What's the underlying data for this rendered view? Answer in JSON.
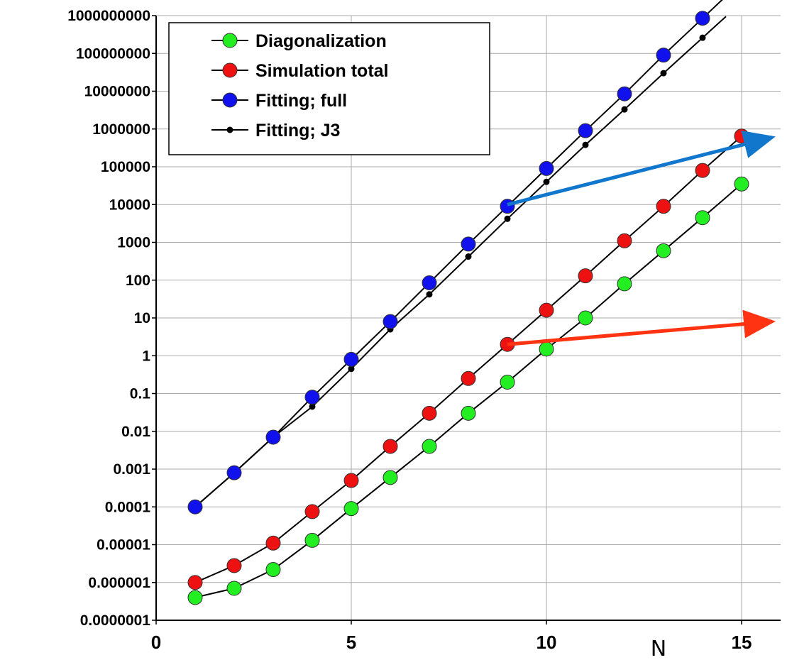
{
  "chart_data": {
    "type": "line",
    "title": "",
    "xlabel": "N",
    "ylabel": "",
    "xlim": [
      0,
      16
    ],
    "ylim": [
      1e-07,
      1000000000.0
    ],
    "yscale": "log",
    "grid": true,
    "legend_position": "top-left",
    "x_ticks": [
      0,
      5,
      10,
      15
    ],
    "x_tick_labels": [
      "0",
      "5",
      "10",
      "15"
    ],
    "y_ticks": [
      1e-07,
      1e-06,
      1e-05,
      0.0001,
      0.001,
      0.01,
      0.1,
      1,
      10,
      100,
      1000,
      10000,
      100000,
      1000000,
      10000000,
      100000000,
      1000000000
    ],
    "y_tick_labels": [
      "0.0000001",
      "0.000001",
      "0.00001",
      "0.0001",
      "0.001",
      "0.01",
      "0.1",
      "1",
      "10",
      "100",
      "1000",
      "10000",
      "100000",
      "1000000",
      "10000000",
      "100000000",
      "1000000000"
    ],
    "series": [
      {
        "name": "Diagonalization",
        "color": "#22ee22",
        "marker": "circle",
        "x": [
          1,
          2,
          3,
          4,
          5,
          6,
          7,
          8,
          9,
          10,
          11,
          12,
          13,
          14,
          15
        ],
        "y": [
          4e-07,
          7e-07,
          2.2e-06,
          1.3e-05,
          9e-05,
          0.0006,
          0.004,
          0.03,
          0.2,
          1.5,
          10,
          80,
          600,
          4500,
          35000
        ]
      },
      {
        "name": "Simulation total",
        "color": "#ee1111",
        "marker": "circle",
        "x": [
          1,
          2,
          3,
          4,
          5,
          6,
          7,
          8,
          9,
          10,
          11,
          12,
          13,
          14,
          15
        ],
        "y": [
          1e-06,
          2.8e-06,
          1.1e-05,
          7.5e-05,
          0.0005,
          0.004,
          0.03,
          0.25,
          2,
          16,
          130,
          1100,
          9000,
          80000,
          650000
        ]
      },
      {
        "name": "Fitting; full",
        "color": "#1111ee",
        "marker": "circle",
        "x": [
          1,
          2,
          3,
          4,
          5,
          6,
          7,
          8,
          9,
          10,
          11,
          12,
          13,
          14
        ],
        "y": [
          0.0001,
          0.0008,
          0.007,
          0.08,
          0.8,
          8,
          85,
          900,
          9000,
          90000,
          900000,
          8500000,
          90000000,
          850000000
        ]
      },
      {
        "name": "Fitting; J3",
        "color": "#000000",
        "marker": "dot",
        "x": [
          1,
          2,
          3,
          4,
          5,
          6,
          7,
          8,
          9,
          10,
          11,
          12,
          13,
          14
        ],
        "y": [
          0.0001,
          0.0008,
          0.007,
          0.045,
          0.45,
          5,
          42,
          420,
          4200,
          40000,
          380000,
          3300000,
          30000000,
          260000000
        ]
      }
    ],
    "annotations": [
      {
        "type": "arrow",
        "color": "#1177cc",
        "from": [
          9,
          10000
        ],
        "to": [
          16,
          600000
        ]
      },
      {
        "type": "arrow",
        "color": "#ff3311",
        "from": [
          9,
          2
        ],
        "to": [
          16,
          8
        ]
      }
    ]
  }
}
